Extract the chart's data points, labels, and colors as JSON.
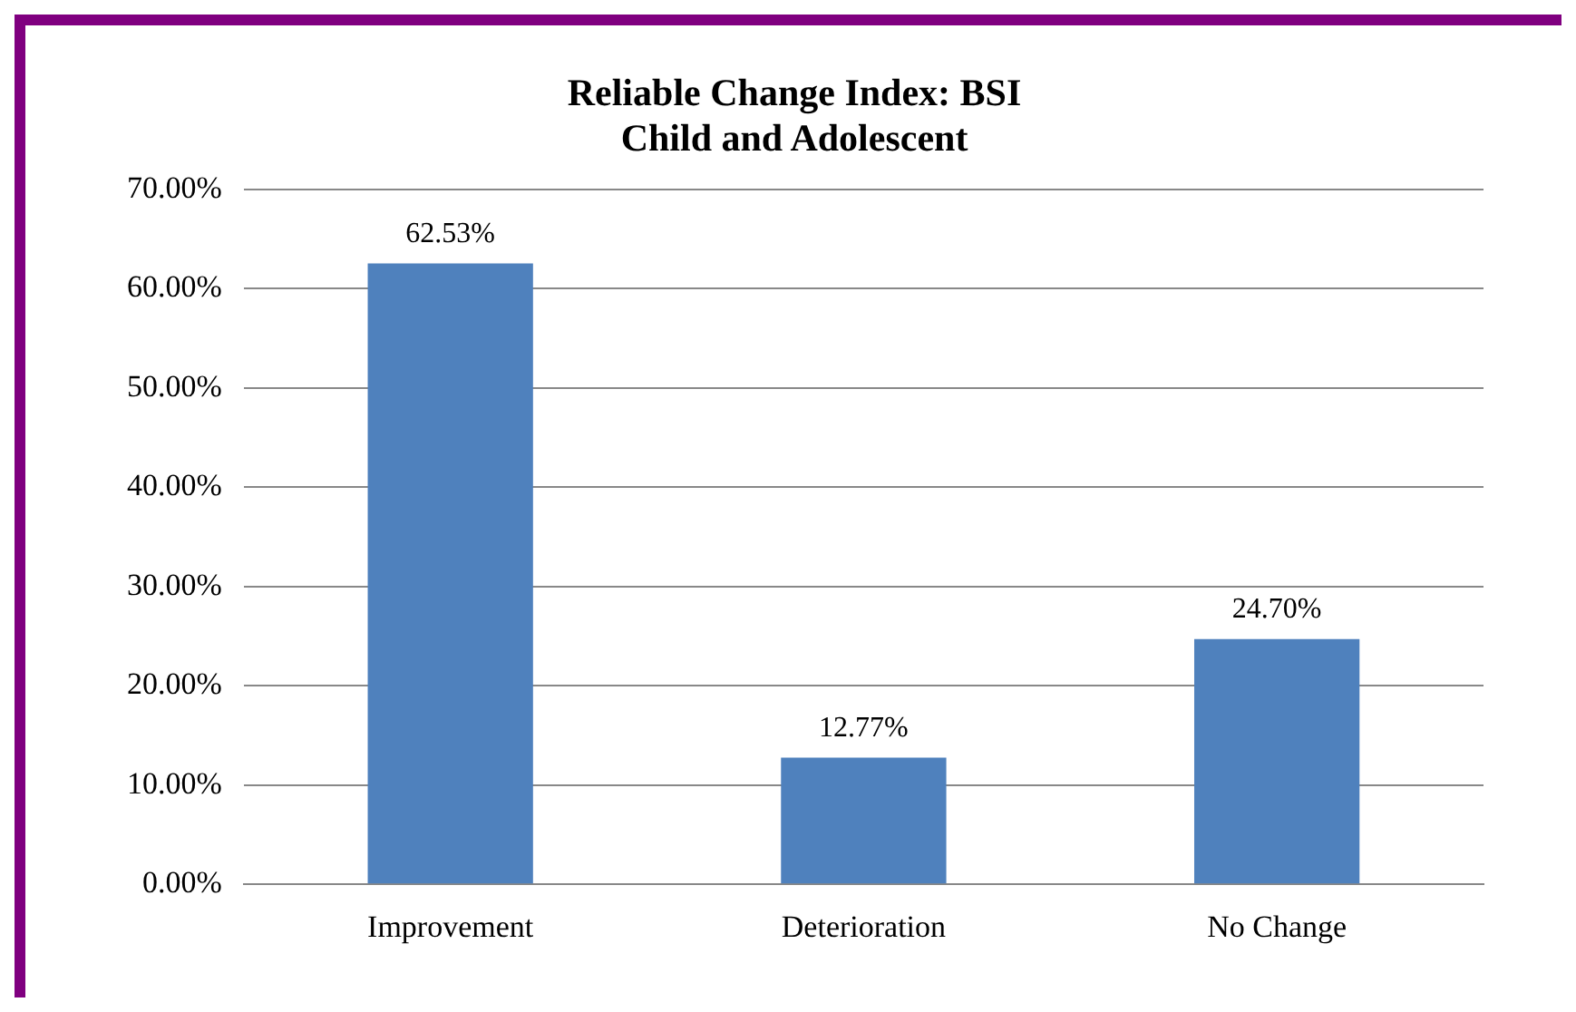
{
  "chart_data": {
    "type": "bar",
    "title": "Reliable Change Index: BSI\nChild and Adolescent",
    "categories": [
      "Improvement",
      "Deterioration",
      "No Change"
    ],
    "values": [
      62.53,
      12.77,
      24.7
    ],
    "value_labels": [
      "62.53%",
      "12.77%",
      "24.70%"
    ],
    "color": "#4f81bd",
    "ylim": [
      0,
      70
    ],
    "yticks": [
      {
        "value": 0,
        "label": "0.00%"
      },
      {
        "value": 10,
        "label": "10.00%"
      },
      {
        "value": 20,
        "label": "20.00%"
      },
      {
        "value": 30,
        "label": "30.00%"
      },
      {
        "value": 40,
        "label": "40.00%"
      },
      {
        "value": 50,
        "label": "50.00%"
      },
      {
        "value": 60,
        "label": "60.00%"
      },
      {
        "value": 70,
        "label": "70.00%"
      }
    ],
    "grid": "y",
    "legend": false
  }
}
